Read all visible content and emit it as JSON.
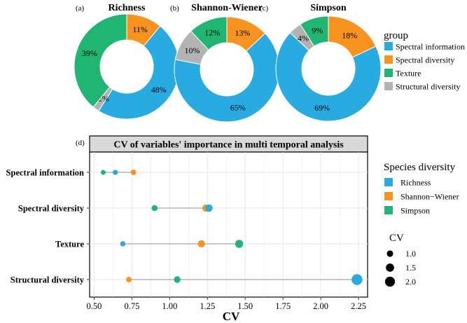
{
  "colors": {
    "spectral_information": "#29ABE2",
    "spectral_diversity": "#F7931E",
    "texture": "#21B573",
    "structural_diversity": "#B3B3B3",
    "segment_line": "#B3B3B3",
    "grid": "#E6E6E6",
    "header_fill": "#D9D9D9"
  },
  "donut_legend": {
    "title": "group",
    "items": [
      "Spectral information",
      "Spectral diversity",
      "Texture",
      "Structural diversity"
    ],
    "color_keys": [
      "spectral_information",
      "spectral_diversity",
      "texture",
      "structural_diversity"
    ]
  },
  "dot_legend": {
    "title": "Species diversity",
    "items": [
      "Richness",
      "Shannon−Wiener",
      "Simpson"
    ],
    "color_keys": [
      "spectral_information",
      "spectral_diversity",
      "texture"
    ],
    "size_title": "CV",
    "size_values": [
      "1.0",
      "1.5",
      "2.0"
    ]
  },
  "chart_data": [
    {
      "type": "pie",
      "panel": "(a)",
      "title": "Richness",
      "categories": [
        "Spectral information",
        "Spectral diversity",
        "Texture",
        "Structural diversity"
      ],
      "values": [
        48,
        11,
        39,
        2
      ],
      "labels": [
        "48%",
        "11%",
        "39%",
        "2%"
      ]
    },
    {
      "type": "pie",
      "panel": "(b)",
      "title": "Shannon-Wiener",
      "categories": [
        "Spectral information",
        "Spectral diversity",
        "Texture",
        "Structural diversity"
      ],
      "values": [
        65,
        13,
        12,
        10
      ],
      "labels": [
        "65%",
        "13%",
        "12%",
        "10%"
      ]
    },
    {
      "type": "pie",
      "panel": "(c)",
      "title": "Simpson",
      "categories": [
        "Spectral information",
        "Spectral diversity",
        "Texture",
        "Structural diversity"
      ],
      "values": [
        69,
        18,
        9,
        4
      ],
      "labels": [
        "69%",
        "18%",
        "9%",
        "4%"
      ]
    },
    {
      "type": "scatter",
      "panel": "(d)",
      "title": "CV of variables' importance in multi temporal analysis",
      "xlabel": "CV",
      "ylabel": "",
      "xlim": [
        0.47,
        2.31
      ],
      "xticks": [
        "0.50",
        "0.75",
        "1.00",
        "1.25",
        "1.50",
        "1.75",
        "2.00",
        "2.25"
      ],
      "categories": [
        "Spectral information",
        "Spectral diversity",
        "Texture",
        "Structural diversity"
      ],
      "series": [
        {
          "name": "Richness",
          "values": [
            0.64,
            1.26,
            0.69,
            2.24
          ]
        },
        {
          "name": "Shannon−Wiener",
          "values": [
            0.76,
            1.24,
            1.21,
            0.73
          ]
        },
        {
          "name": "Simpson",
          "values": [
            0.56,
            0.9,
            1.46,
            1.05
          ]
        }
      ]
    }
  ]
}
